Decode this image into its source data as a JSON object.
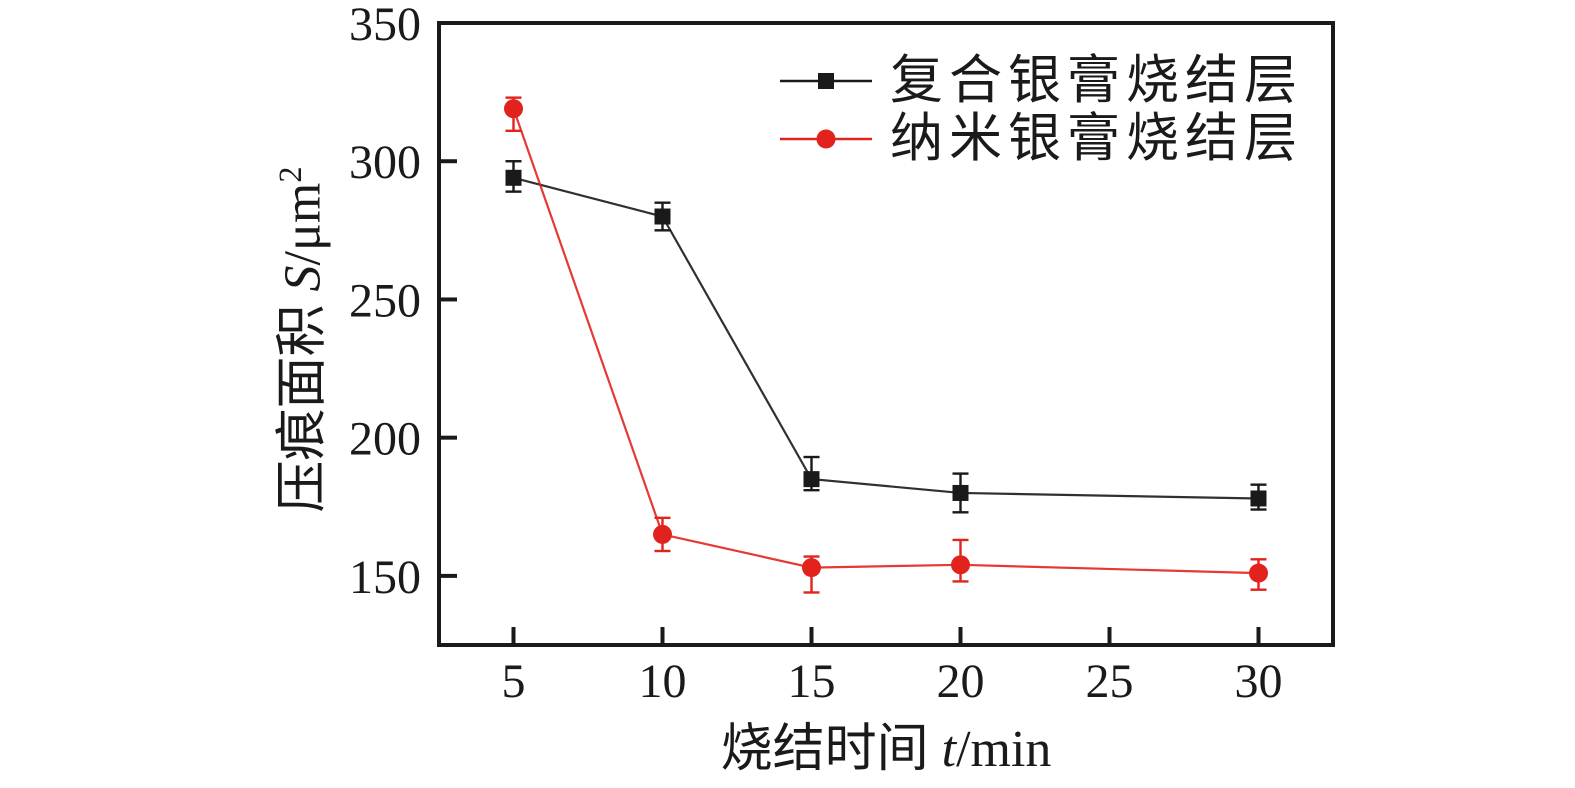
{
  "chart_data": {
    "type": "line",
    "title": "",
    "xlabel_parts": {
      "prefix": "烧结时间 ",
      "var": "t",
      "unit": "/min"
    },
    "ylabel_parts": {
      "prefix": "压痕面积 ",
      "var": "S",
      "unit": "/μm",
      "sup": "2"
    },
    "xlim": [
      2.5,
      32.5
    ],
    "ylim": [
      125,
      350
    ],
    "x_ticks": [
      5,
      10,
      15,
      20,
      25,
      30
    ],
    "y_ticks": [
      150,
      200,
      250,
      300,
      350
    ],
    "grid": false,
    "legend_position": "top-right-inside",
    "axis_color": "#1a1a1a",
    "series": [
      {
        "name": "复合银膏烧结层",
        "color": "#1a1a1a",
        "marker": "square",
        "x": [
          5,
          10,
          15,
          20,
          30
        ],
        "y": [
          294,
          280,
          185,
          180,
          178
        ],
        "err_up": [
          6,
          5,
          8,
          7,
          5
        ],
        "err_down": [
          5,
          5,
          4,
          7,
          4
        ]
      },
      {
        "name": "纳米银膏烧结层",
        "color": "#e2231d",
        "marker": "circle",
        "x": [
          5,
          10,
          15,
          20,
          30
        ],
        "y": [
          319,
          165,
          153,
          154,
          151
        ],
        "err_up": [
          4,
          6,
          4,
          9,
          5
        ],
        "err_down": [
          8,
          6,
          9,
          6,
          6
        ]
      }
    ]
  }
}
